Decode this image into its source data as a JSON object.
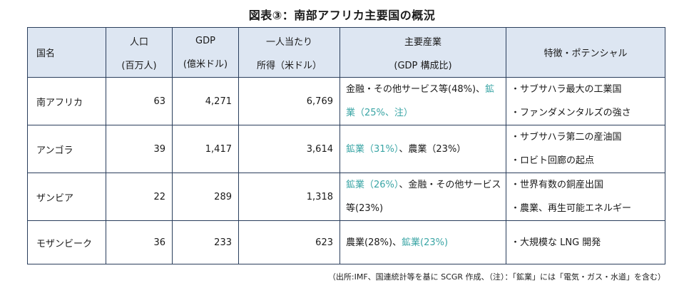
{
  "title": "図表③：南部アフリカ主要国の概況",
  "colors": {
    "accent": "#3aa5a5",
    "header_bg": "#dde6f2",
    "border": "#2a3e5c"
  },
  "headers": {
    "country": "国名",
    "population": [
      "人口",
      "(百万人)"
    ],
    "gdp": [
      "GDP",
      "(億米ドル)"
    ],
    "income": [
      "一人当たり",
      "所得（米ドル）"
    ],
    "industry": [
      "主要産業",
      "(GDP 構成比)"
    ],
    "features": "特徴・ポテンシャル"
  },
  "rows": [
    {
      "country": "南アフリカ",
      "population": "63",
      "gdp": "4,271",
      "income": "6,769",
      "industry": [
        {
          "text": "金融・その他サービス等(48%)、",
          "accent": false
        },
        {
          "text": "鉱",
          "accent": true
        }
      ],
      "industry2": [
        {
          "text": "業（25%、注）",
          "accent": true
        }
      ],
      "features": [
        "・サブサハラ最大の工業国",
        "・ファンダメンタルズの強さ"
      ]
    },
    {
      "country": "アンゴラ",
      "population": "39",
      "gdp": "1,417",
      "income": "3,614",
      "industry": [
        {
          "text": "鉱業（31%）",
          "accent": true
        },
        {
          "text": "、農業（23%）",
          "accent": false
        }
      ],
      "features": [
        "・サブサハラ第二の産油国",
        "・ロビト回廊の起点"
      ]
    },
    {
      "country": "ザンビア",
      "population": "22",
      "gdp": "289",
      "income": "1,318",
      "industry": [
        {
          "text": "鉱業（26%）",
          "accent": true
        },
        {
          "text": "、金融・その他サービス",
          "accent": false
        }
      ],
      "industry2": [
        {
          "text": "等(23%)",
          "accent": false
        }
      ],
      "features": [
        "・世界有数の銅産出国",
        "・農業、再生可能エネルギー"
      ]
    },
    {
      "country": "モザンビーク",
      "population": "36",
      "gdp": "233",
      "income": "623",
      "industry": [
        {
          "text": "農業(28%)、",
          "accent": false
        },
        {
          "text": "鉱業(23%)",
          "accent": true
        }
      ],
      "features": [
        "・大規模な LNG 開発"
      ]
    }
  ],
  "source_note": "（出所:IMF、国連統計等を基に SCGR 作成、（注）：「鉱業」には「電気・ガス・水道」を含む）"
}
